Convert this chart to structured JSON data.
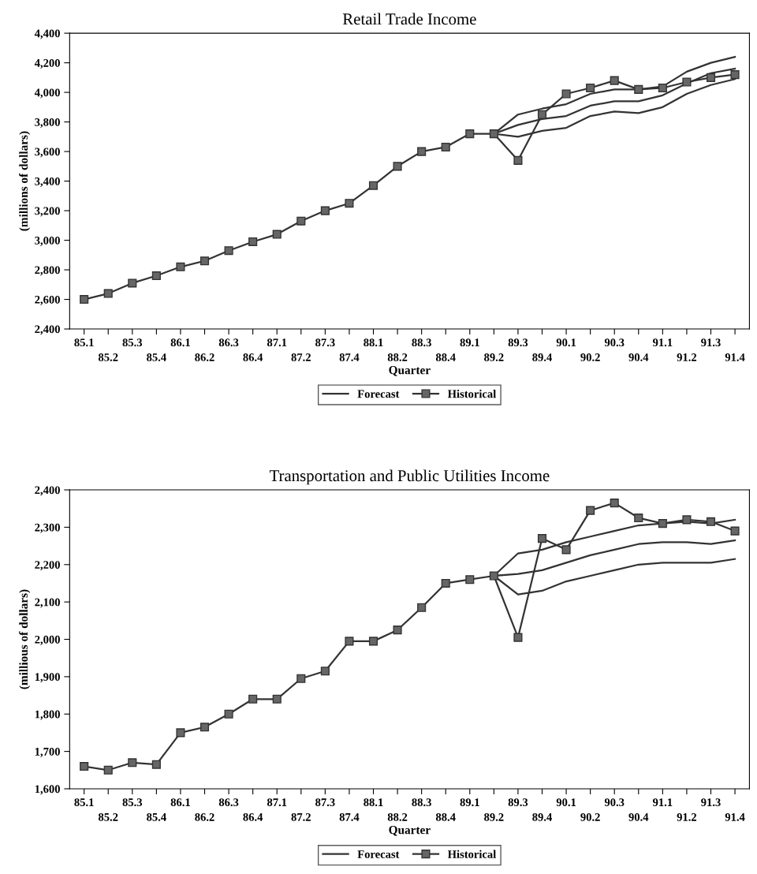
{
  "chart_data": [
    {
      "type": "line",
      "title": "Retail Trade Income",
      "xlabel": "Quarter",
      "ylabel": "(millions of dollars)",
      "categories": [
        "85.1",
        "85.2",
        "85.3",
        "85.4",
        "86.1",
        "86.2",
        "86.3",
        "86.4",
        "87.1",
        "87.2",
        "87.3",
        "87.4",
        "88.1",
        "88.2",
        "88.3",
        "88.4",
        "89.1",
        "89.2",
        "89.3",
        "89.4",
        "90.1",
        "90.2",
        "90.3",
        "90.4",
        "91.1",
        "91.2",
        "91.3",
        "91.4"
      ],
      "ylim": [
        2400,
        4400
      ],
      "yticks": [
        {
          "value": 2400,
          "label": "2,400"
        },
        {
          "value": 2600,
          "label": "2,600"
        },
        {
          "value": 2800,
          "label": "2,800"
        },
        {
          "value": 3000,
          "label": "3,000"
        },
        {
          "value": 3200,
          "label": "3,200"
        },
        {
          "value": 3400,
          "label": "3,400"
        },
        {
          "value": 3600,
          "label": "3,600"
        },
        {
          "value": 3800,
          "label": "3,800"
        },
        {
          "value": 4000,
          "label": "4,000"
        },
        {
          "value": 4200,
          "label": "4,200"
        },
        {
          "value": 4400,
          "label": "4,400"
        }
      ],
      "grid": false,
      "legend": "bottom",
      "line_style": "solid",
      "series": [
        {
          "name": "Forecast",
          "color": "#333333",
          "marker": "none",
          "values": [
            null,
            null,
            null,
            null,
            null,
            null,
            null,
            null,
            null,
            null,
            null,
            null,
            null,
            null,
            null,
            null,
            null,
            3720,
            3850,
            3890,
            3920,
            3990,
            4020,
            4020,
            4040,
            4140,
            4200,
            4240
          ]
        },
        {
          "color": "#333333",
          "marker": "none",
          "values": [
            null,
            null,
            null,
            null,
            null,
            null,
            null,
            null,
            null,
            null,
            null,
            null,
            null,
            null,
            null,
            null,
            null,
            3720,
            3780,
            3820,
            3840,
            3910,
            3940,
            3940,
            3980,
            4060,
            4130,
            4160
          ]
        },
        {
          "color": "#333333",
          "marker": "none",
          "values": [
            null,
            null,
            null,
            null,
            null,
            null,
            null,
            null,
            null,
            null,
            null,
            null,
            null,
            null,
            null,
            null,
            null,
            3720,
            3700,
            3740,
            3760,
            3840,
            3870,
            3860,
            3900,
            3990,
            4050,
            4090
          ]
        },
        {
          "name": "Historical",
          "color": "#333333",
          "marker": "square",
          "values": [
            2600,
            2640,
            2710,
            2760,
            2820,
            2860,
            2930,
            2990,
            3040,
            3130,
            3200,
            3250,
            3370,
            3500,
            3600,
            3630,
            3720,
            3720,
            3540,
            3850,
            3990,
            4030,
            4080,
            4020,
            4030,
            4070,
            4100,
            4120
          ]
        }
      ]
    },
    {
      "type": "line",
      "title": "Transportation and Public Utilities Income",
      "xlabel": "Quarter",
      "ylabel": "(millious of dollars)",
      "categories": [
        "85.1",
        "85.2",
        "85.3",
        "85.4",
        "86.1",
        "86.2",
        "86.3",
        "86.4",
        "87.1",
        "87.2",
        "87.3",
        "87.4",
        "88.1",
        "88.2",
        "88.3",
        "88.4",
        "89.1",
        "89.2",
        "89.3",
        "89.4",
        "90.1",
        "90.2",
        "90.3",
        "90.4",
        "91.1",
        "91.2",
        "91.3",
        "91.4"
      ],
      "ylim": [
        1600,
        2400
      ],
      "yticks": [
        {
          "value": 1600,
          "label": "1,600"
        },
        {
          "value": 1700,
          "label": "1,700"
        },
        {
          "value": 1800,
          "label": "1,800"
        },
        {
          "value": 1900,
          "label": "1,900"
        },
        {
          "value": 2000,
          "label": "2,000"
        },
        {
          "value": 2100,
          "label": "2,100"
        },
        {
          "value": 2200,
          "label": "2,200"
        },
        {
          "value": 2300,
          "label": "2,300"
        },
        {
          "value": 2400,
          "label": "2,400"
        }
      ],
      "grid": false,
      "legend": "bottom",
      "line_style": "solid",
      "series": [
        {
          "name": "Forecast",
          "color": "#333333",
          "marker": "none",
          "values": [
            null,
            null,
            null,
            null,
            null,
            null,
            null,
            null,
            null,
            null,
            null,
            null,
            null,
            null,
            null,
            null,
            null,
            2170,
            2230,
            2240,
            2260,
            2275,
            2290,
            2305,
            2310,
            2315,
            2310,
            2320
          ]
        },
        {
          "color": "#333333",
          "marker": "none",
          "values": [
            null,
            null,
            null,
            null,
            null,
            null,
            null,
            null,
            null,
            null,
            null,
            null,
            null,
            null,
            null,
            null,
            null,
            2170,
            2175,
            2185,
            2205,
            2225,
            2240,
            2255,
            2260,
            2260,
            2255,
            2265
          ]
        },
        {
          "color": "#333333",
          "marker": "none",
          "values": [
            null,
            null,
            null,
            null,
            null,
            null,
            null,
            null,
            null,
            null,
            null,
            null,
            null,
            null,
            null,
            null,
            null,
            2170,
            2120,
            2130,
            2155,
            2170,
            2185,
            2200,
            2205,
            2205,
            2205,
            2215
          ]
        },
        {
          "name": "Historical",
          "color": "#333333",
          "marker": "square",
          "values": [
            1660,
            1650,
            1670,
            1665,
            1750,
            1765,
            1800,
            1840,
            1840,
            1895,
            1915,
            1995,
            1995,
            2025,
            2085,
            2150,
            2160,
            2170,
            2005,
            2270,
            2240,
            2345,
            2365,
            2325,
            2310,
            2320,
            2315,
            2290
          ]
        }
      ]
    }
  ]
}
